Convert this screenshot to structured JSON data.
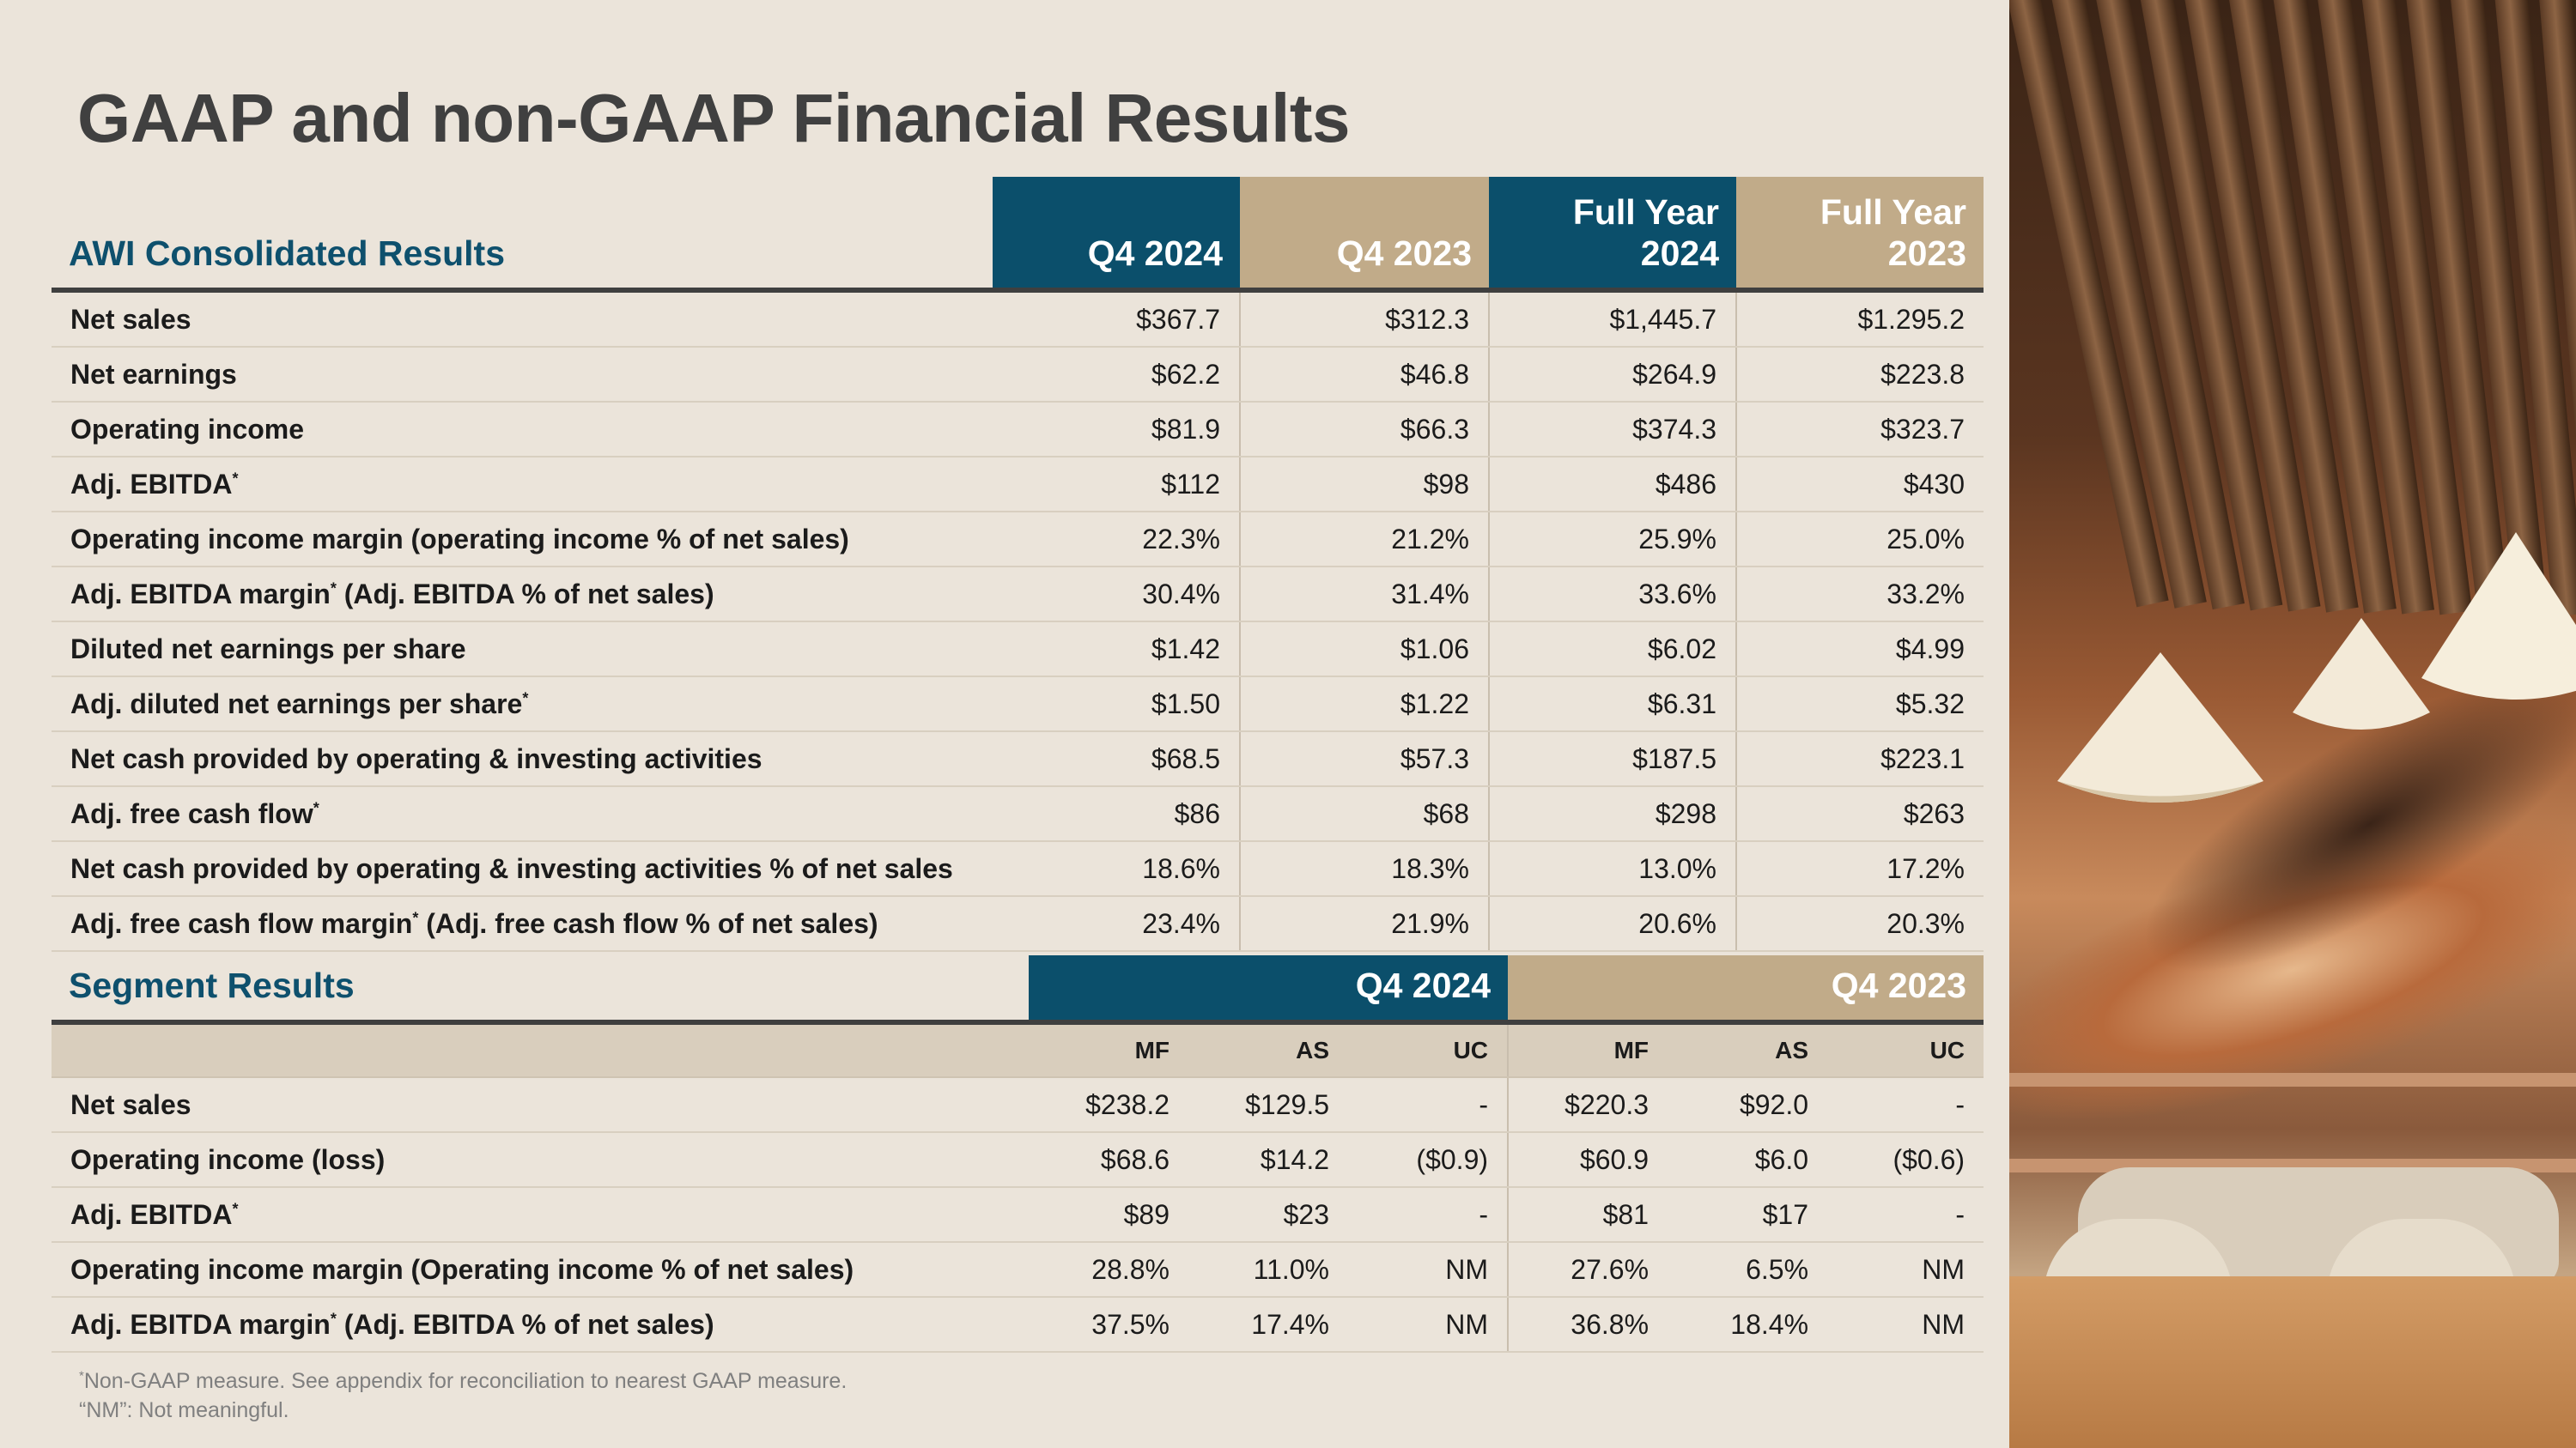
{
  "title": "GAAP and non-GAAP Financial Results",
  "consolidated": {
    "label": "AWI Consolidated Results",
    "columns": [
      {
        "line1": "",
        "line2": "Q4 2024",
        "style": "blue"
      },
      {
        "line1": "",
        "line2": "Q4 2023",
        "style": "tan"
      },
      {
        "line1": "Full Year",
        "line2": "2024",
        "style": "blue"
      },
      {
        "line1": "Full Year",
        "line2": "2023",
        "style": "tan"
      }
    ],
    "rows": [
      {
        "label": "Net sales",
        "star": "",
        "suffix": "",
        "values": [
          "$367.7",
          "$312.3",
          "$1,445.7",
          "$1.295.2"
        ]
      },
      {
        "label": "Net earnings",
        "star": "",
        "suffix": "",
        "values": [
          "$62.2",
          "$46.8",
          "$264.9",
          "$223.8"
        ]
      },
      {
        "label": "Operating income",
        "star": "",
        "suffix": "",
        "values": [
          "$81.9",
          "$66.3",
          "$374.3",
          "$323.7"
        ]
      },
      {
        "label": "Adj. EBITDA",
        "star": "*",
        "suffix": "",
        "values": [
          "$112",
          "$98",
          "$486",
          "$430"
        ]
      },
      {
        "label": "Operating income margin (operating income % of net sales)",
        "star": "",
        "suffix": "",
        "values": [
          "22.3%",
          "21.2%",
          "25.9%",
          "25.0%"
        ]
      },
      {
        "label": "Adj. EBITDA margin",
        "star": "*",
        "suffix": " (Adj. EBITDA % of net sales)",
        "values": [
          "30.4%",
          "31.4%",
          "33.6%",
          "33.2%"
        ]
      },
      {
        "label": "Diluted net earnings per share",
        "star": "",
        "suffix": "",
        "values": [
          "$1.42",
          "$1.06",
          "$6.02",
          "$4.99"
        ]
      },
      {
        "label": "Adj. diluted net earnings per share",
        "star": "*",
        "suffix": "",
        "values": [
          "$1.50",
          "$1.22",
          "$6.31",
          "$5.32"
        ]
      },
      {
        "label": "Net cash provided by operating & investing activities",
        "star": "",
        "suffix": "",
        "values": [
          "$68.5",
          "$57.3",
          "$187.5",
          "$223.1"
        ]
      },
      {
        "label": "Adj. free cash flow",
        "star": "*",
        "suffix": "",
        "values": [
          "$86",
          "$68",
          "$298",
          "$263"
        ]
      },
      {
        "label": "Net cash provided by operating & investing activities % of net sales",
        "star": "",
        "suffix": "",
        "values": [
          "18.6%",
          "18.3%",
          "13.0%",
          "17.2%"
        ]
      },
      {
        "label": "Adj. free cash flow margin",
        "star": "*",
        "suffix": " (Adj. free cash flow % of net sales)",
        "values": [
          "23.4%",
          "21.9%",
          "20.6%",
          "20.3%"
        ]
      }
    ]
  },
  "segment": {
    "label": "Segment Results",
    "periods": [
      "Q4 2024",
      "Q4 2023"
    ],
    "subcolumns": [
      "MF",
      "AS",
      "UC",
      "MF",
      "AS",
      "UC"
    ],
    "rows": [
      {
        "label": "Net sales",
        "star": "",
        "suffix": "",
        "values": [
          "$238.2",
          "$129.5",
          "-",
          "$220.3",
          "$92.0",
          "-"
        ]
      },
      {
        "label": "Operating income (loss)",
        "star": "",
        "suffix": "",
        "values": [
          "$68.6",
          "$14.2",
          "($0.9)",
          "$60.9",
          "$6.0",
          "($0.6)"
        ]
      },
      {
        "label": "Adj. EBITDA",
        "star": "*",
        "suffix": "",
        "values": [
          "$89",
          "$23",
          "-",
          "$81",
          "$17",
          "-"
        ]
      },
      {
        "label": "Operating income margin (Operating income % of net sales)",
        "star": "",
        "suffix": "",
        "values": [
          "28.8%",
          "11.0%",
          "NM",
          "27.6%",
          "6.5%",
          "NM"
        ]
      },
      {
        "label": "Adj. EBITDA margin",
        "star": "*",
        "suffix": " (Adj. EBITDA % of net sales)",
        "values": [
          "37.5%",
          "17.4%",
          "NM",
          "36.8%",
          "18.4%",
          "NM"
        ]
      }
    ]
  },
  "footnotes": {
    "star": "*",
    "line1": "Non-GAAP measure. See appendix for reconciliation to nearest GAAP measure.",
    "line2": "“NM”: Not meaningful."
  },
  "colors": {
    "background": "#ebe4da",
    "header_blue": "#0b4f6b",
    "header_tan": "#c1ab89",
    "section_label": "#0e506d",
    "title": "#404040"
  },
  "photo": {
    "icon": "interior-lounge-photo"
  }
}
